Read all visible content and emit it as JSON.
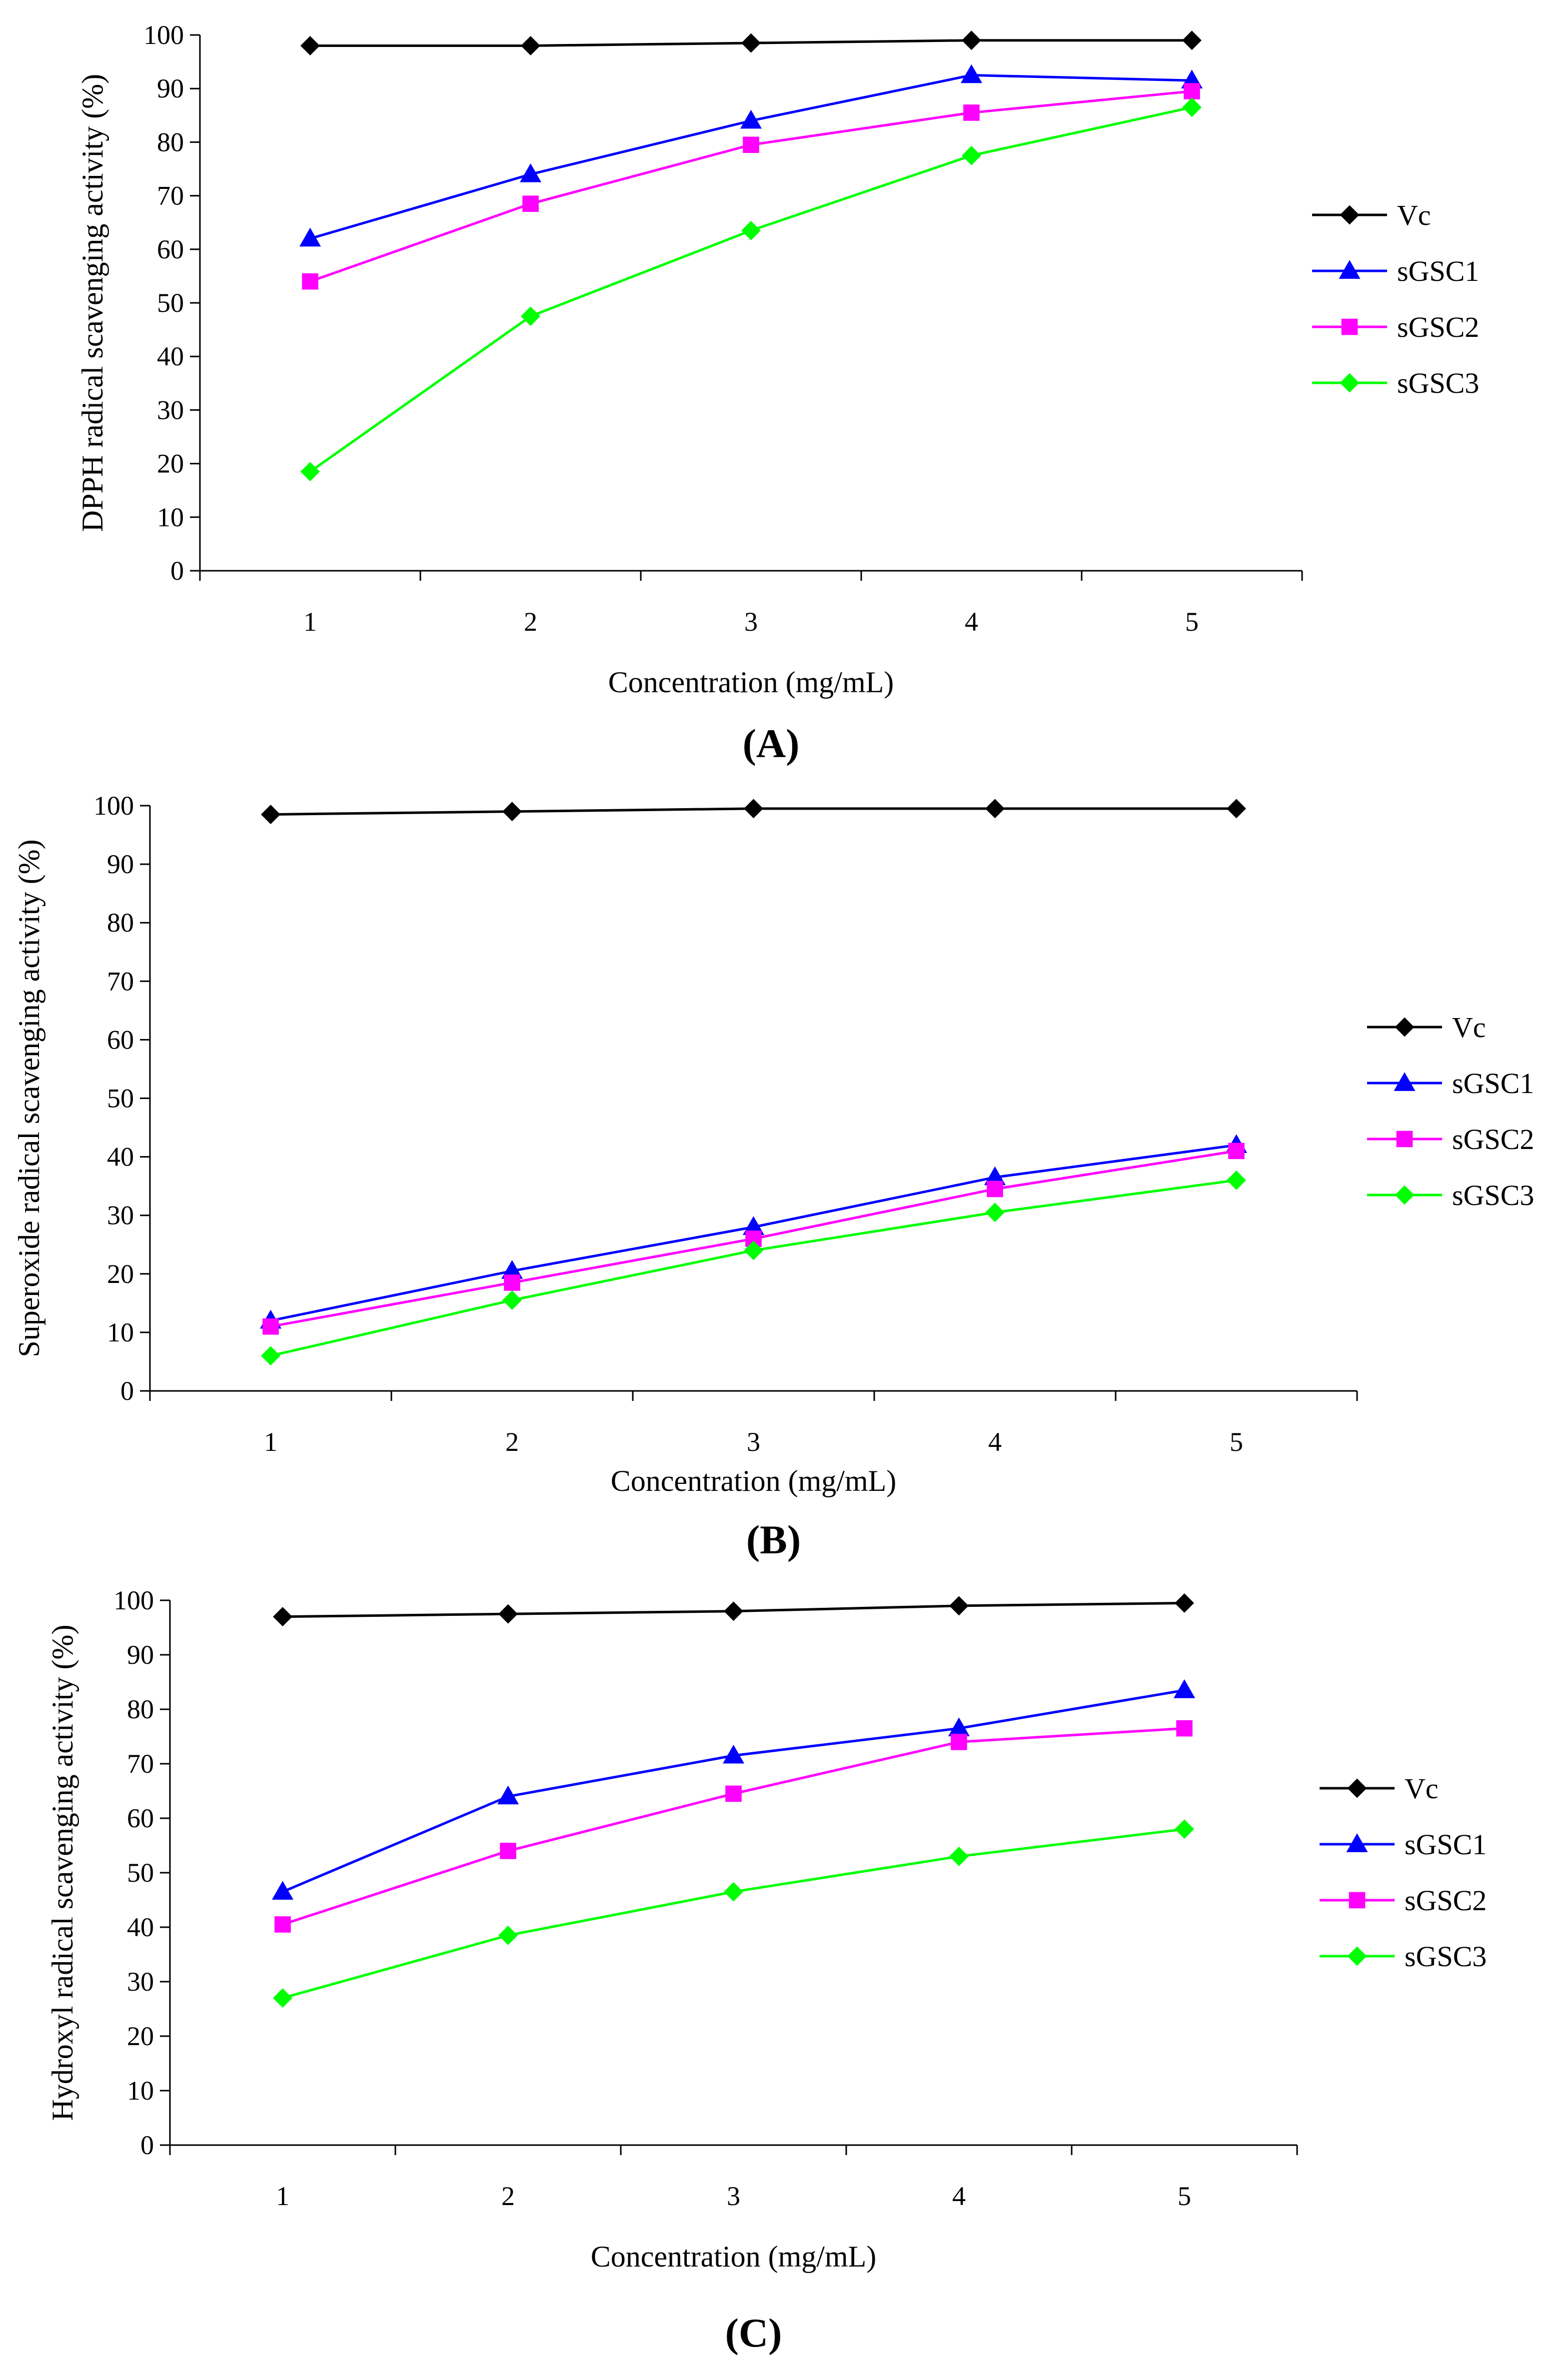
{
  "chart_data": [
    {
      "type": "line",
      "panel_label": "(A)",
      "title": "",
      "xlabel": "Concentration (mg/mL)",
      "ylabel": "DPPH radical scavenging activity (%)",
      "categories": [
        "1",
        "2",
        "3",
        "4",
        "5"
      ],
      "ylim": [
        0,
        100
      ],
      "yticks": [
        "0",
        "10",
        "20",
        "30",
        "40",
        "50",
        "60",
        "70",
        "80",
        "90",
        "100"
      ],
      "grid": false,
      "legend_position": "right",
      "series": [
        {
          "name": "Vc",
          "marker": "diamond",
          "color": "#000000",
          "values": [
            98.0,
            98.0,
            98.5,
            99.0,
            99.0
          ]
        },
        {
          "name": "sGSC1",
          "marker": "triangle",
          "color": "#0000ff",
          "values": [
            62.0,
            74.0,
            84.0,
            92.5,
            91.5
          ]
        },
        {
          "name": "sGSC2",
          "marker": "square",
          "color": "#ff00ff",
          "values": [
            54.0,
            68.5,
            79.5,
            85.5,
            89.5
          ]
        },
        {
          "name": "sGSC3",
          "marker": "diamond",
          "color": "#00ff00",
          "values": [
            18.5,
            47.5,
            63.5,
            77.5,
            86.5
          ]
        }
      ]
    },
    {
      "type": "line",
      "panel_label": "(B)",
      "title": "",
      "xlabel": "Concentration (mg/mL)",
      "ylabel": "Superoxide radical scavenging activity (%)",
      "categories": [
        "1",
        "2",
        "3",
        "4",
        "5"
      ],
      "ylim": [
        0,
        100
      ],
      "yticks": [
        "0",
        "10",
        "20",
        "30",
        "40",
        "50",
        "60",
        "70",
        "80",
        "90",
        "100"
      ],
      "grid": false,
      "legend_position": "right",
      "series": [
        {
          "name": "Vc",
          "marker": "diamond",
          "color": "#000000",
          "values": [
            98.5,
            99.0,
            99.5,
            99.5,
            99.5
          ]
        },
        {
          "name": "sGSC1",
          "marker": "triangle",
          "color": "#0000ff",
          "values": [
            12.0,
            20.5,
            28.0,
            36.5,
            42.0
          ]
        },
        {
          "name": "sGSC2",
          "marker": "square",
          "color": "#ff00ff",
          "values": [
            11.0,
            18.5,
            26.0,
            34.5,
            41.0
          ]
        },
        {
          "name": "sGSC3",
          "marker": "diamond",
          "color": "#00ff00",
          "values": [
            6.0,
            15.5,
            24.0,
            30.5,
            36.0
          ]
        }
      ]
    },
    {
      "type": "line",
      "panel_label": "(C)",
      "title": "",
      "xlabel": "Concentration (mg/mL)",
      "ylabel": "Hydroxyl radical scavenging activity (%)",
      "categories": [
        "1",
        "2",
        "3",
        "4",
        "5"
      ],
      "ylim": [
        0,
        100
      ],
      "yticks": [
        "0",
        "10",
        "20",
        "30",
        "40",
        "50",
        "60",
        "70",
        "80",
        "90",
        "100"
      ],
      "grid": false,
      "legend_position": "right",
      "series": [
        {
          "name": "Vc",
          "marker": "diamond",
          "color": "#000000",
          "values": [
            97.0,
            97.5,
            98.0,
            99.0,
            99.5
          ]
        },
        {
          "name": "sGSC1",
          "marker": "triangle",
          "color": "#0000ff",
          "values": [
            46.5,
            64.0,
            71.5,
            76.5,
            83.5
          ]
        },
        {
          "name": "sGSC2",
          "marker": "square",
          "color": "#ff00ff",
          "values": [
            40.5,
            54.0,
            64.5,
            74.0,
            76.5
          ]
        },
        {
          "name": "sGSC3",
          "marker": "diamond",
          "color": "#00ff00",
          "values": [
            27.0,
            38.5,
            46.5,
            53.0,
            58.0
          ]
        }
      ]
    }
  ]
}
